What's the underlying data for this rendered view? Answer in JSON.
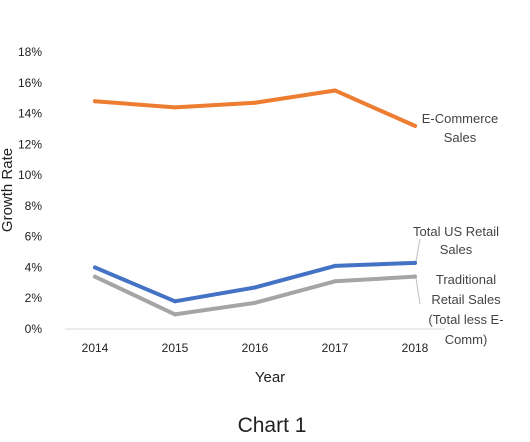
{
  "chart_data": {
    "type": "line",
    "caption": "Chart 1",
    "xlabel": "Year",
    "ylabel": "Growth Rate",
    "x": [
      2014,
      2015,
      2016,
      2017,
      2018
    ],
    "ylim": [
      0,
      18
    ],
    "yticks": [
      "0%",
      "2%",
      "4%",
      "6%",
      "8%",
      "10%",
      "12%",
      "14%",
      "16%",
      "18%"
    ],
    "grid": false,
    "legend": "none",
    "series": [
      {
        "key": "ecommerce",
        "values": [
          14.8,
          14.4,
          14.7,
          15.5,
          13.2
        ],
        "color": "#ED7D31",
        "label_lines": [
          "E-Commerce",
          "Sales"
        ]
      },
      {
        "key": "total",
        "values": [
          4.0,
          1.8,
          2.7,
          4.1,
          4.3
        ],
        "color": "#4472C4",
        "label_lines": [
          "Total US Retail",
          "Sales"
        ]
      },
      {
        "key": "traditional",
        "values": [
          3.4,
          0.95,
          1.7,
          3.1,
          3.4
        ],
        "color": "#A5A5A5",
        "label_lines": [
          "Traditional",
          "Retail Sales",
          "(Total less E-",
          "Comm)"
        ]
      }
    ]
  }
}
